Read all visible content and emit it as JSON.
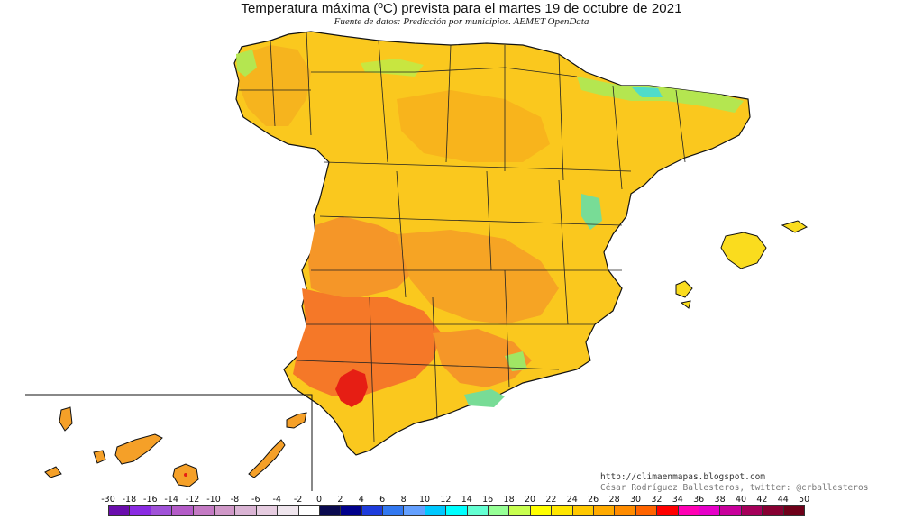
{
  "header": {
    "title": "Temperatura máxima (ºC) prevista para el martes 19 de octubre de 2021",
    "subtitle": "Fuente de datos: Predicción por municipios. AEMET OpenData"
  },
  "credits": {
    "url": "http://climaenmapas.blogspot.com",
    "author": "César Rodríguez Ballesteros, twitter: @crballesteros"
  },
  "legend": {
    "ticks": [
      "-30",
      "-18",
      "-16",
      "-14",
      "-12",
      "-10",
      "-8",
      "-6",
      "-4",
      "-2",
      "0",
      "2",
      "4",
      "6",
      "8",
      "10",
      "12",
      "14",
      "16",
      "18",
      "20",
      "22",
      "24",
      "26",
      "28",
      "30",
      "32",
      "34",
      "36",
      "38",
      "40",
      "42",
      "44",
      "50"
    ],
    "colors": [
      "#6a0dad",
      "#8a2be2",
      "#a052d8",
      "#b45cc8",
      "#c47ac4",
      "#d098c8",
      "#dab4d4",
      "#e6cce0",
      "#f0e6ee",
      "#ffffff",
      "#0a0a50",
      "#00008b",
      "#1e3cdc",
      "#3278f0",
      "#64a0ff",
      "#00c8ff",
      "#00ffff",
      "#64ffd2",
      "#96ff96",
      "#c8ff50",
      "#ffff00",
      "#ffe600",
      "#ffc800",
      "#ffaa00",
      "#ff8c00",
      "#ff6400",
      "#ff0000",
      "#ff00b4",
      "#e600c8",
      "#c8009b",
      "#a5005a",
      "#870032",
      "#6e0019"
    ]
  },
  "map": {
    "regions": [
      {
        "name": "Galicia",
        "color": "#f6b41e"
      },
      {
        "name": "Cantabrian coast",
        "color": "#c8e640"
      },
      {
        "name": "Castilla y León",
        "color": "#fac81e"
      },
      {
        "name": "Extremadura",
        "color": "#f59628"
      },
      {
        "name": "Western Andalucía",
        "color": "#f57828"
      },
      {
        "name": "Sevilla hotspot",
        "color": "#e61e14"
      },
      {
        "name": "Balearic Islands",
        "color": "#fadc1e"
      },
      {
        "name": "Canary Islands",
        "color": "#f5a028"
      }
    ]
  }
}
